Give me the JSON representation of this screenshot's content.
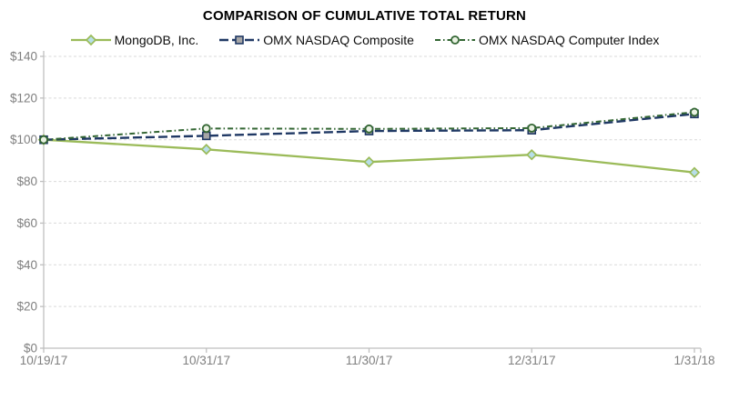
{
  "chart_data": {
    "type": "line",
    "title": "COMPARISON OF CUMULATIVE TOTAL RETURN",
    "categories": [
      "10/19/17",
      "10/31/17",
      "11/30/17",
      "12/31/17",
      "1/31/18"
    ],
    "series": [
      {
        "name": "MongoDB, Inc.",
        "values": [
          100,
          95.4,
          89.3,
          92.8,
          84.3
        ],
        "color": "#9bbb59",
        "line_style": "solid",
        "marker": "diamond",
        "marker_fill": "#b7dee8"
      },
      {
        "name": "OMX NASDAQ Composite",
        "values": [
          100,
          101.9,
          104.2,
          104.6,
          112.4
        ],
        "color": "#1f3864",
        "line_style": "dashed",
        "marker": "square",
        "marker_fill": "#a6a6a6"
      },
      {
        "name": "OMX NASDAQ Computer Index",
        "values": [
          100,
          105.4,
          105.2,
          105.6,
          113.2
        ],
        "color": "#336633",
        "line_style": "dash-dot",
        "marker": "circle",
        "marker_fill": "#eaf2e3"
      }
    ],
    "xlabel": "",
    "ylabel": "",
    "ylim": [
      0,
      140
    ],
    "y_tick_step": 20,
    "y_tick_prefix": "$",
    "y_tick_labels": [
      "$0",
      "$20",
      "$40",
      "$60",
      "$80",
      "$100",
      "$120",
      "$140"
    ],
    "grid": "horizontal-dashed",
    "legend_position": "top-center",
    "colors": {
      "gridline": "#d9d9d9",
      "axis": "#bfbfbf",
      "tick_label": "#7f7f7f",
      "title": "#000000",
      "background": "#ffffff"
    }
  }
}
